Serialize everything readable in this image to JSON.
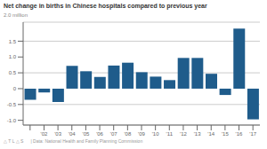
{
  "chart_data": {
    "type": "bar",
    "title": "Net change in births in Chinese hospitals compared to previous year",
    "ylabel": "2.0 million",
    "annotations": [
      "△ T L △ S",
      "|  Data: National Health and Family Planning Commission"
    ],
    "categories": [
      null,
      "'02",
      "'03",
      "'04",
      "'05",
      "'06",
      "'07",
      "'08",
      "'09",
      "'10",
      "'11",
      "'12",
      "'13",
      "'14",
      "'15",
      "'16",
      "'17"
    ],
    "values": [
      -0.35,
      -0.12,
      -0.42,
      0.72,
      0.55,
      0.37,
      0.73,
      0.82,
      0.52,
      0.38,
      0.27,
      0.97,
      0.97,
      0.47,
      -0.2,
      1.9,
      -0.97
    ],
    "color": "#1f5c8b",
    "ylim": [
      -1.15,
      2.1
    ],
    "yticks": [
      {
        "value": -1.0,
        "label": "-1.0"
      },
      -0.5,
      0,
      0.5,
      {
        "value": 1.0,
        "label": "1.0"
      },
      1.5
    ],
    "grid": true
  }
}
